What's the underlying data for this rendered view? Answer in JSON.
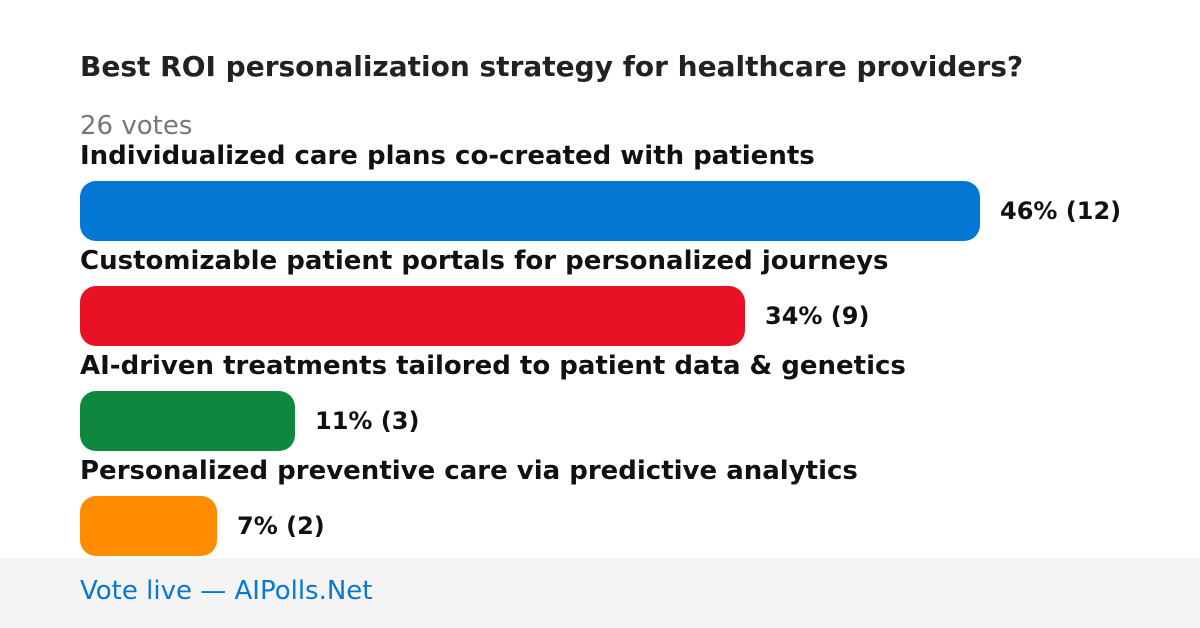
{
  "poll": {
    "question": "Best ROI personalization strategy for healthcare providers?",
    "votes_label": "26 votes"
  },
  "chart_data": {
    "type": "bar",
    "orientation": "horizontal",
    "title": "Best ROI personalization strategy for healthcare providers?",
    "total_votes": 26,
    "categories": [
      "Individualized care plans co-created with patients",
      "Customizable patient portals for personalized journeys",
      "AI-driven treatments tailored to patient data & genetics",
      "Personalized preventive care via predictive analytics"
    ],
    "values": [
      46,
      34,
      11,
      7
    ],
    "counts": [
      12,
      9,
      3,
      2
    ],
    "value_labels": [
      "46% (12)",
      "34% (9)",
      "11% (3)",
      "7% (2)"
    ],
    "colors": [
      "#0477d4",
      "#e81224",
      "#0f873e",
      "#ff8c00"
    ],
    "xlim": [
      0,
      46
    ]
  },
  "footer": {
    "text": "Vote live — AIPolls.Net"
  }
}
